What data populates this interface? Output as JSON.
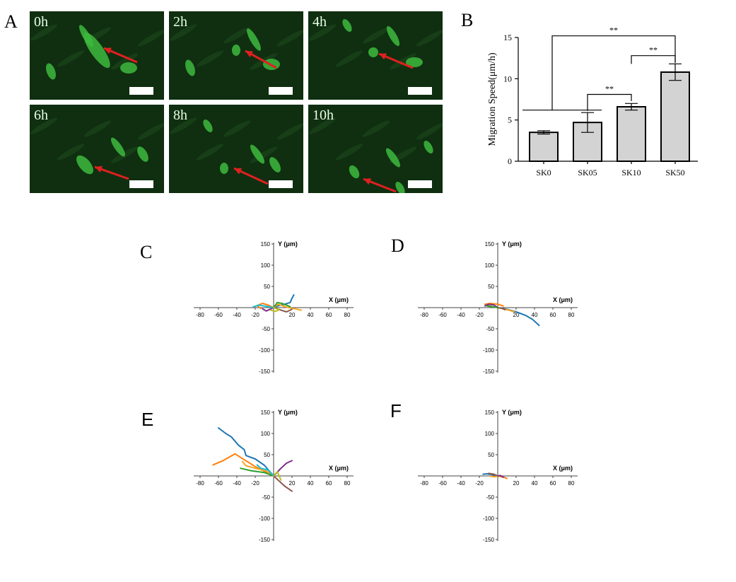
{
  "labels": {
    "A": "A",
    "B": "B",
    "C": "C",
    "D": "D",
    "E": "E",
    "F": "F"
  },
  "timepoints": [
    "0h",
    "2h",
    "4h",
    "6h",
    "8h",
    "10h"
  ],
  "colors": {
    "arrow": "#e02020",
    "bar_fill": "#d3d3d3",
    "tracks": [
      "#1f77b4",
      "#ff7f0e",
      "#f5a623",
      "#7b2d8b",
      "#8c564b",
      "#2ca02c",
      "#17becf",
      "#bcbd22",
      "#4b0082",
      "#d62728"
    ]
  },
  "chart_data": [
    {
      "type": "bar",
      "categories": [
        "SK0",
        "SK05",
        "SK10",
        "SK50"
      ],
      "values": [
        3.5,
        4.7,
        6.6,
        10.8
      ],
      "errors": [
        0.2,
        1.2,
        0.4,
        1.0
      ],
      "ylabel": "Migration Speed(μm/h)",
      "ylim": [
        0,
        15
      ],
      "yticks": [
        0,
        5,
        10,
        15
      ],
      "significance": [
        {
          "from": "SK0",
          "to": "SK50",
          "label": "**"
        },
        {
          "from": "SK05",
          "to": "SK10",
          "label": "**"
        },
        {
          "from": "SK10",
          "to": "SK50",
          "label": "**"
        }
      ]
    },
    {
      "type": "line",
      "panel": "C",
      "xlabel": "X (μm)",
      "ylabel": "Y (μm)",
      "xlim": [
        -90,
        90
      ],
      "ylim": [
        -150,
        150
      ],
      "xticks": [
        -80,
        -60,
        -40,
        -20,
        20,
        40,
        60,
        80
      ],
      "yticks": [
        150,
        100,
        50,
        -50,
        -100,
        -150
      ],
      "series": [
        {
          "x": [
            0,
            6,
            12,
            18,
            20,
            22
          ],
          "y": [
            0,
            5,
            8,
            12,
            22,
            30
          ]
        },
        {
          "x": [
            0,
            -6,
            -12,
            -18,
            -14
          ],
          "y": [
            0,
            6,
            10,
            5,
            -2
          ]
        },
        {
          "x": [
            0,
            5,
            10,
            16,
            24,
            30
          ],
          "y": [
            0,
            8,
            4,
            0,
            -3,
            -6
          ]
        },
        {
          "x": [
            0,
            -4,
            -8,
            -12
          ],
          "y": [
            0,
            -4,
            -8,
            -3
          ]
        },
        {
          "x": [
            0,
            8,
            14,
            20
          ],
          "y": [
            0,
            -6,
            -10,
            -4
          ]
        },
        {
          "x": [
            0,
            4,
            9,
            14,
            18
          ],
          "y": [
            0,
            12,
            10,
            6,
            2
          ]
        },
        {
          "x": [
            0,
            -8,
            -16,
            -22
          ],
          "y": [
            0,
            3,
            6,
            2
          ]
        },
        {
          "x": [
            0,
            6,
            2,
            -3
          ],
          "y": [
            0,
            -5,
            -9,
            -6
          ]
        }
      ]
    },
    {
      "type": "line",
      "panel": "D",
      "xlabel": "X (μm)",
      "ylabel": "Y (μm)",
      "xlim": [
        -90,
        90
      ],
      "ylim": [
        -150,
        150
      ],
      "xticks": [
        -80,
        -60,
        -40,
        -20,
        20,
        40,
        60,
        80
      ],
      "yticks": [
        150,
        100,
        50,
        -50,
        -100,
        -150
      ],
      "series": [
        {
          "x": [
            0,
            10,
            20,
            30,
            38,
            45
          ],
          "y": [
            0,
            -4,
            -10,
            -18,
            -28,
            -42
          ]
        },
        {
          "x": [
            0,
            -8,
            -14,
            -8,
            0,
            6
          ],
          "y": [
            0,
            3,
            8,
            10,
            8,
            4
          ]
        },
        {
          "x": [
            0,
            6,
            12,
            18
          ],
          "y": [
            0,
            -3,
            -6,
            -10
          ]
        },
        {
          "x": [
            0,
            -4,
            -10,
            -14
          ],
          "y": [
            0,
            6,
            8,
            4
          ]
        },
        {
          "x": [
            0,
            5,
            8
          ],
          "y": [
            0,
            -2,
            -5
          ]
        },
        {
          "x": [
            0,
            -6,
            -12
          ],
          "y": [
            0,
            2,
            4
          ]
        }
      ]
    },
    {
      "type": "line",
      "panel": "E",
      "xlabel": "X (μm)",
      "ylabel": "Y (μm)",
      "xlim": [
        -90,
        90
      ],
      "ylim": [
        -150,
        150
      ],
      "xticks": [
        -80,
        -60,
        -40,
        -20,
        20,
        40,
        60,
        80
      ],
      "yticks": [
        150,
        100,
        50,
        -50,
        -100,
        -150
      ],
      "series": [
        {
          "x": [
            0,
            -10,
            -20,
            -30,
            -32,
            -38,
            -46,
            -52,
            -60
          ],
          "y": [
            0,
            25,
            40,
            48,
            62,
            72,
            92,
            100,
            113
          ]
        },
        {
          "x": [
            0,
            -20,
            -42,
            -55,
            -66
          ],
          "y": [
            0,
            22,
            52,
            36,
            26
          ]
        },
        {
          "x": [
            0,
            -8,
            -20,
            -30,
            -34
          ],
          "y": [
            0,
            12,
            18,
            24,
            34
          ]
        },
        {
          "x": [
            0,
            8,
            14,
            20
          ],
          "y": [
            0,
            18,
            30,
            36
          ]
        },
        {
          "x": [
            0,
            6,
            12,
            20
          ],
          "y": [
            0,
            -12,
            -24,
            -36
          ]
        },
        {
          "x": [
            0,
            -10,
            -24,
            -36
          ],
          "y": [
            0,
            8,
            12,
            18
          ]
        },
        {
          "x": [
            0,
            -6,
            -14,
            -18
          ],
          "y": [
            0,
            14,
            18,
            26
          ]
        },
        {
          "x": [
            0,
            4,
            8
          ],
          "y": [
            0,
            10,
            -10
          ]
        }
      ]
    },
    {
      "type": "line",
      "panel": "F",
      "xlabel": "X (μm)",
      "ylabel": "Y (μm)",
      "xlim": [
        -90,
        90
      ],
      "ylim": [
        -150,
        150
      ],
      "xticks": [
        -80,
        -60,
        -40,
        -20,
        20,
        40,
        60,
        80
      ],
      "yticks": [
        150,
        100,
        50,
        -50,
        -100,
        -150
      ],
      "series": [
        {
          "x": [
            0,
            -6,
            -12,
            -16
          ],
          "y": [
            0,
            3,
            5,
            4
          ]
        },
        {
          "x": [
            0,
            4,
            8,
            10
          ],
          "y": [
            0,
            -2,
            -4,
            -6
          ]
        },
        {
          "x": [
            0,
            -3,
            -8
          ],
          "y": [
            0,
            -2,
            -1
          ]
        },
        {
          "x": [
            0,
            3,
            6
          ],
          "y": [
            0,
            1,
            -3
          ]
        },
        {
          "x": [
            0,
            -4,
            -10
          ],
          "y": [
            0,
            4,
            6
          ]
        }
      ]
    }
  ]
}
